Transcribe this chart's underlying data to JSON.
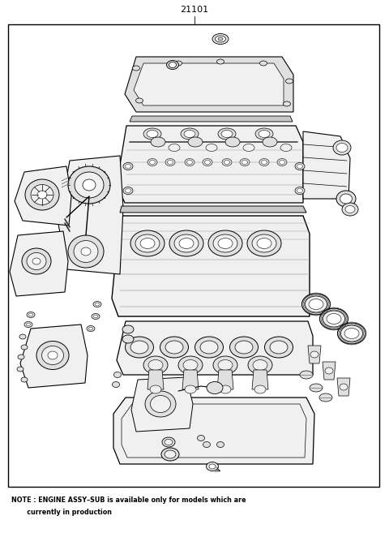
{
  "title_code": "21101",
  "note_line1": "NOTE : ENGINE ASSY–SUB is available only for models which are",
  "note_line2": "       currently in production",
  "bg_color": "#ffffff",
  "border_color": "#000000",
  "text_color": "#000000",
  "fig_width": 4.8,
  "fig_height": 6.57,
  "dpi": 100,
  "lw_main": 0.7,
  "lw_thick": 1.0,
  "lw_thin": 0.4,
  "fc_white": "#ffffff",
  "fc_light": "#f0f0f0",
  "fc_mid": "#e0e0e0",
  "fc_dark": "#c8c8c8"
}
